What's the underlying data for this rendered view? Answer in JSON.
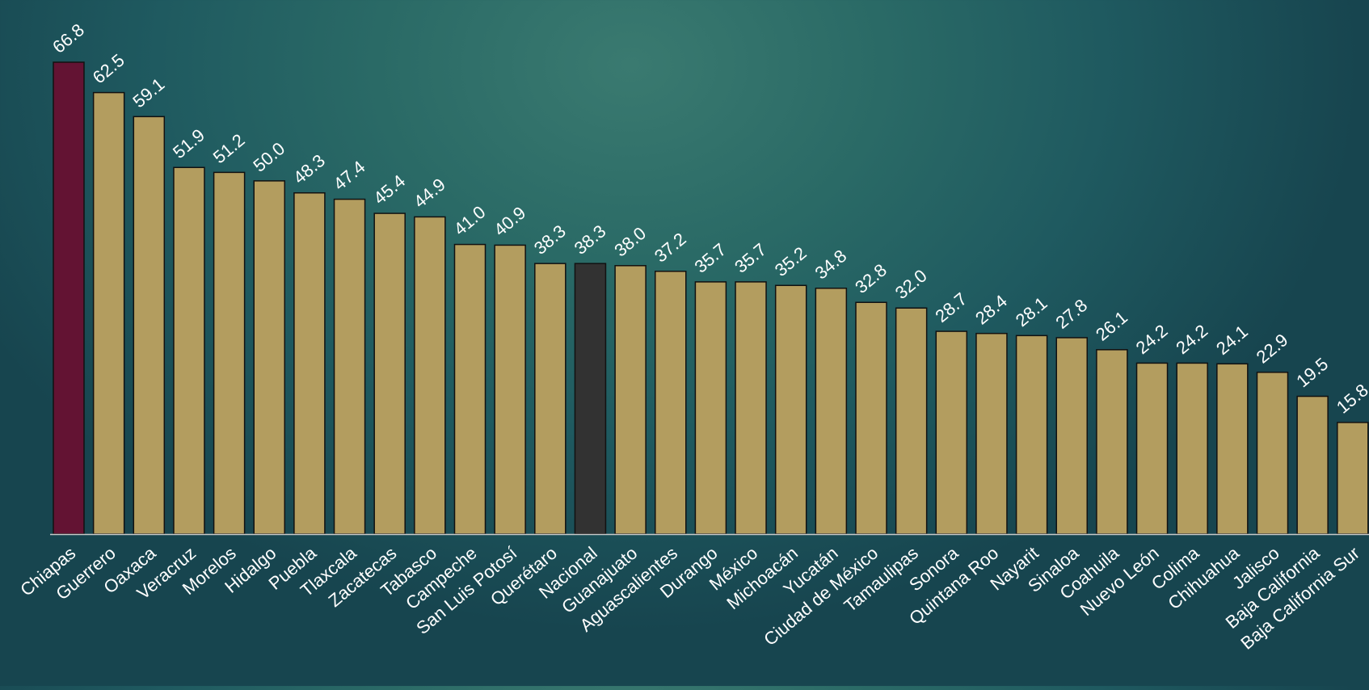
{
  "chart_data": {
    "type": "bar",
    "title": "",
    "xlabel": "",
    "ylabel": "",
    "ylim": [
      0,
      66.8
    ],
    "grid": false,
    "legend": "none",
    "categories": [
      "Chiapas",
      "Guerrero",
      "Oaxaca",
      "Veracruz",
      "Morelos",
      "Hidalgo",
      "Puebla",
      "Tlaxcala",
      "Zacatecas",
      "Tabasco",
      "Campeche",
      "San Luis Potosí",
      "Querétaro",
      "Nacional",
      "Guanajuato",
      "Aguascalientes",
      "Durango",
      "México",
      "Michoacán",
      "Yucatán",
      "Ciudad de México",
      "Tamaulipas",
      "Sonora",
      "Quintana Roo",
      "Nayarit",
      "Sinaloa",
      "Coahuila",
      "Nuevo León",
      "Colima",
      "Chihuahua",
      "Jalisco",
      "Baja California",
      "Baja California Sur"
    ],
    "values": [
      66.8,
      62.5,
      59.1,
      51.9,
      51.2,
      50.0,
      48.3,
      47.4,
      45.4,
      44.9,
      41.0,
      40.9,
      38.3,
      38.3,
      38.0,
      37.2,
      35.7,
      35.7,
      35.2,
      34.8,
      32.8,
      32.0,
      28.7,
      28.4,
      28.1,
      27.8,
      26.1,
      24.2,
      24.2,
      24.1,
      22.9,
      19.5,
      15.8
    ],
    "value_labels": [
      "66.8",
      "62.5",
      "59.1",
      "51.9",
      "51.2",
      "50.0",
      "48.3",
      "47.4",
      "45.4",
      "44.9",
      "41.0",
      "40.9",
      "38.3",
      "38.3",
      "38.0",
      "37.2",
      "35.7",
      "35.7",
      "35.2",
      "34.8",
      "32.8",
      "32.0",
      "28.7",
      "28.4",
      "28.1",
      "27.8",
      "26.1",
      "24.2",
      "24.2",
      "24.1",
      "22.9",
      "19.5",
      "15.8"
    ],
    "colors": {
      "default_bar": "#b39d5f",
      "highlight_bar": "#631333",
      "national_bar": "#323232",
      "bar_stroke": "#111111",
      "baseline": "#c9c9c9"
    },
    "bar_color_map": {
      "Chiapas": "highlight_bar",
      "Nacional": "national_bar"
    }
  }
}
